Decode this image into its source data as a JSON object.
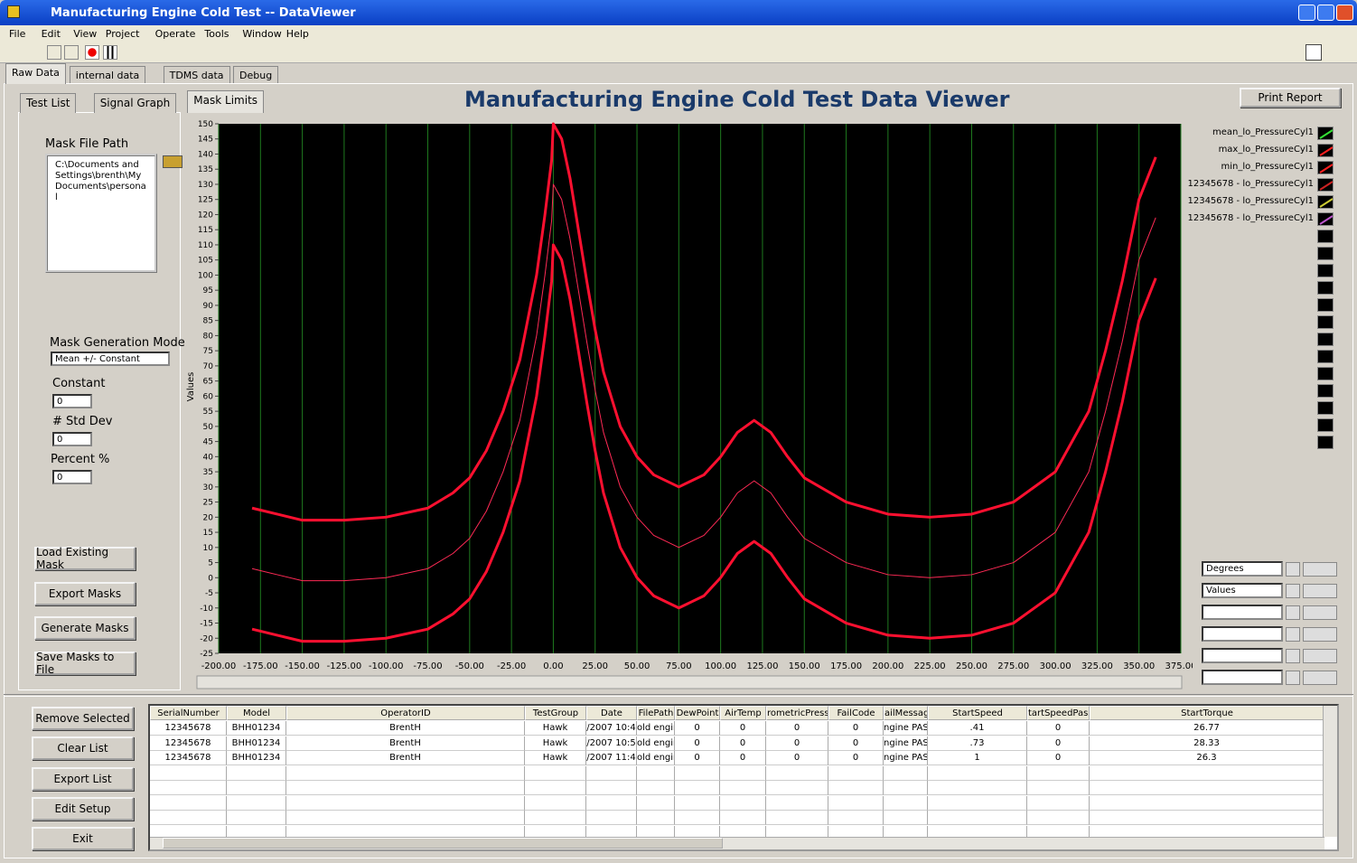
{
  "window": {
    "title": "Manufacturing Engine Cold Test -- DataViewer"
  },
  "menu": [
    "File",
    "Edit",
    "View",
    "Project",
    "Operate",
    "Tools",
    "Window",
    "Help"
  ],
  "outer_tabs": [
    "Raw Data",
    "internal data",
    "TDMS data",
    "Debug"
  ],
  "inner_tabs": [
    "Test List",
    "Signal Graph",
    "Mask Limits"
  ],
  "heading": "Manufacturing Engine Cold Test Data Viewer",
  "print_button": "Print Report",
  "mask_panel": {
    "path_label": "Mask File Path",
    "path": "C:\\Documents and Settings\\brenth\\My Documents\\personal",
    "mode_label": "Mask Generation Mode",
    "mode": "Mean +/- Constant",
    "constant_label": "Constant",
    "constant": "0",
    "std_label": "# Std Dev",
    "std": "0",
    "percent_label": "Percent %",
    "percent": "0",
    "buttons": [
      "Load Existing Mask",
      "Export Masks",
      "Generate Masks",
      "Save Masks to File"
    ]
  },
  "list_buttons": [
    "Remove Selected",
    "Clear List",
    "Export List",
    "Edit Setup",
    "Exit"
  ],
  "axis_fields": [
    "Degrees",
    "Values"
  ],
  "graph": {
    "type": "line",
    "y_label": "Values",
    "grid": true,
    "x": [
      -180,
      -165,
      -150,
      -125,
      -100,
      -75,
      -60,
      -50,
      -40,
      -30,
      -20,
      -10,
      -5,
      -1,
      0,
      5,
      10,
      15,
      20,
      25,
      30,
      40,
      50,
      60,
      75,
      90,
      100,
      110,
      120,
      130,
      140,
      150,
      175,
      200,
      225,
      250,
      275,
      300,
      320,
      330,
      340,
      350,
      360
    ],
    "series": [
      {
        "name": "mean_lo_PressureCyl1",
        "color": "#ff2a55",
        "icon": "#33dd33",
        "width": 1,
        "values": [
          3,
          1,
          -1,
          -1,
          0,
          3,
          8,
          13,
          22,
          35,
          52,
          80,
          100,
          118,
          130,
          125,
          112,
          95,
          78,
          62,
          48,
          30,
          20,
          14,
          10,
          14,
          20,
          28,
          32,
          28,
          20,
          13,
          5,
          1,
          0,
          1,
          5,
          15,
          35,
          55,
          78,
          105,
          119
        ]
      },
      {
        "name": "max_lo_PressureCyl1",
        "color": "#ff1030",
        "icon": "#ff2020",
        "width": 3,
        "values": [
          23,
          21,
          19,
          19,
          20,
          23,
          28,
          33,
          42,
          55,
          72,
          100,
          120,
          138,
          150,
          145,
          132,
          115,
          98,
          82,
          68,
          50,
          40,
          34,
          30,
          34,
          40,
          48,
          52,
          48,
          40,
          33,
          25,
          21,
          20,
          21,
          25,
          35,
          55,
          75,
          98,
          125,
          139
        ]
      },
      {
        "name": "min_lo_PressureCyl1",
        "color": "#ff1030",
        "icon": "#ff2020",
        "width": 3,
        "values": [
          -17,
          -19,
          -21,
          -21,
          -20,
          -17,
          -12,
          -7,
          2,
          15,
          32,
          60,
          80,
          98,
          110,
          105,
          92,
          75,
          58,
          42,
          28,
          10,
          0,
          -6,
          -10,
          -6,
          0,
          8,
          12,
          8,
          0,
          -7,
          -15,
          -19,
          -20,
          -19,
          -15,
          -5,
          15,
          35,
          58,
          85,
          99
        ]
      },
      {
        "name": "12345678 - lo_PressureCyl1",
        "color": "#aa1111",
        "icon": "#cc2222",
        "width": 1,
        "values": []
      },
      {
        "name": "12345678 - lo_PressureCyl1",
        "color": "#999900",
        "icon": "#cccc33",
        "width": 1,
        "values": []
      },
      {
        "name": "12345678 - lo_PressureCyl1",
        "color": "#aa33aa",
        "icon": "#bb55cc",
        "width": 1,
        "values": []
      }
    ],
    "xlim": [
      -200,
      375
    ],
    "ylim": [
      -25,
      150
    ],
    "xticks": [
      {
        "value": -200,
        "label": "-200.00"
      },
      {
        "value": -175,
        "label": "-175.00"
      },
      {
        "value": -150,
        "label": "-150.00"
      },
      {
        "value": -125,
        "label": "-125.00"
      },
      {
        "value": -100,
        "label": "-100.00"
      },
      {
        "value": -75,
        "label": "-75.00"
      },
      {
        "value": -50,
        "label": "-50.00"
      },
      {
        "value": -25,
        "label": "-25.00"
      },
      {
        "value": 0,
        "label": "0.00"
      },
      {
        "value": 25,
        "label": "25.00"
      },
      {
        "value": 50,
        "label": "50.00"
      },
      {
        "value": 75,
        "label": "75.00"
      },
      {
        "value": 100,
        "label": "100.00"
      },
      {
        "value": 125,
        "label": "125.00"
      },
      {
        "value": 150,
        "label": "150.00"
      },
      {
        "value": 175,
        "label": "175.00"
      },
      {
        "value": 200,
        "label": "200.00"
      },
      {
        "value": 225,
        "label": "225.00"
      },
      {
        "value": 250,
        "label": "250.00"
      },
      {
        "value": 275,
        "label": "275.00"
      },
      {
        "value": 300,
        "label": "300.00"
      },
      {
        "value": 325,
        "label": "325.00"
      },
      {
        "value": 350,
        "label": "350.00"
      },
      {
        "value": 375,
        "label": "375.00"
      }
    ],
    "yticks": [
      -25,
      -20,
      -15,
      -10,
      -5,
      0,
      5,
      10,
      15,
      20,
      25,
      30,
      35,
      40,
      45,
      50,
      55,
      60,
      65,
      70,
      75,
      80,
      85,
      90,
      95,
      100,
      105,
      110,
      115,
      120,
      125,
      130,
      135,
      140,
      145,
      150
    ]
  },
  "table": {
    "columns": [
      "SerialNumber",
      "Model",
      "OperatorID",
      "TestGroup",
      "Date",
      "FilePath",
      "DewPoint",
      "AirTemp",
      "rometricPressu",
      "FailCode",
      "ailMessage",
      "StartSpeed",
      "tartSpeedPass",
      "StartTorque"
    ],
    "rows": [
      [
        "12345678",
        "BHH01234",
        "BrentH",
        "Hawk",
        "/2007 10:4",
        "old engin",
        "0",
        "0",
        "0",
        "0",
        "ngine PASS",
        ".41",
        "0",
        "26.77"
      ],
      [
        "12345678",
        "BHH01234",
        "BrentH",
        "Hawk",
        "/2007 10:5",
        "old engin",
        "0",
        "0",
        "0",
        "0",
        "ngine PASS",
        ".73",
        "0",
        "28.33"
      ],
      [
        "12345678",
        "BHH01234",
        "BrentH",
        "Hawk",
        "/2007 11:4",
        "old engin",
        "0",
        "0",
        "0",
        "0",
        "ngine PASS",
        "1",
        "0",
        "26.3"
      ]
    ]
  }
}
